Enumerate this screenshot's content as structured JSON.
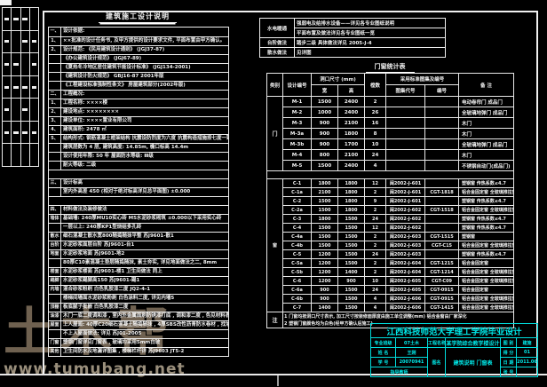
{
  "watermark": {
    "logo_text": "土木帮",
    "url": "www.tumubang.net"
  },
  "notes": {
    "title": "建筑施工设计说明",
    "rows": [
      {
        "n": "一、",
        "t": "设计依据:"
      },
      {
        "n": "1、",
        "t": "××批准的设计任务书, 及甲方提供的设计要求文件, 平面布置由甲方确认。"
      },
      {
        "n": "2、",
        "t": "设计规范: 《民用建筑设计通则》    (JGJ37-87)"
      },
      {
        "n": "",
        "t": "《办公建筑设计规范》    (JGJ67-89)"
      },
      {
        "n": "",
        "t": "《夏热冬冷地区居住建筑节能设计标准》    (JGJ134-2001)"
      },
      {
        "n": "",
        "t": "《建筑设计防火规范》    GBJ16-87    2001年版"
      },
      {
        "n": "",
        "t": "《工程建设标准强制性条文》    房屋建筑部分(2002年版)"
      },
      {
        "n": "二、",
        "t": "工程概况:"
      },
      {
        "n": "1、",
        "t": "工程名称: ××××楼"
      },
      {
        "n": "2、",
        "t": "建设地点: ××××××××"
      },
      {
        "n": "3、",
        "t": "建设单位: ××××置业有限公司"
      },
      {
        "n": "4、",
        "t": "建筑面积:    2478 ㎡"
      },
      {
        "n": "5、",
        "t": "结构形式: 钢筋混凝土框架结构   抗震设防烈度为六度   抗震构造措施按七度一致"
      },
      {
        "n": "",
        "t": "建筑层数为 4 层,   建筑高度: 14.85m,   檐口标高 14.4m"
      },
      {
        "n": "",
        "t": "设计使用年限: 50 年      屋面防水等级: Ⅲ级"
      },
      {
        "n": "",
        "t": "耐火等级: 二级"
      },
      {
        "blank": true
      },
      {
        "n": "三、",
        "t": "设计标高"
      },
      {
        "n": "",
        "t": "室内外高差 450    (相对于绝对标高详见总平面图)    ±0.000"
      },
      {
        "blank": true
      },
      {
        "n": "四、",
        "t": "材料做法及装修做法"
      },
      {
        "n": "墙体",
        "t": "基础墙: 240厚MU10实心砖  M5水泥砂浆砌筑  ±0.000以下采用实心砖"
      },
      {
        "n": "",
        "t": "一层以上: 240厚KP1型烧结多孔砖"
      },
      {
        "n": "散水",
        "t": "细石混凝土散水宽800随捣随抹平整    苏J9601-散1"
      },
      {
        "n": "台阶",
        "t": "水泥砂浆面层台阶    苏J9601-台1"
      },
      {
        "n": "地面",
        "t": "水泥砂浆地面    苏J9601-地2"
      },
      {
        "n": "",
        "t": "80厚C10素混凝土垫层随捣随抹, 素土夯实, 详见地面做法之二, 8mm"
      },
      {
        "n": "楼面",
        "t": "水泥砂浆楼面  苏J9601-楼1    卫生间做法 同上"
      },
      {
        "n": "踢脚",
        "t": "水泥砂浆踢脚高150    苏J9601-踢1"
      },
      {
        "n": "内墙",
        "t": "混合砂浆粉刷  白色乳胶漆二度    JQ2-4-1"
      },
      {
        "n": "",
        "t": "楼梯间墙面水泥砂浆粉刷  白色涂料二度, 详见内墙5"
      },
      {
        "n": "顶棚",
        "t": "板底腻子批嵌  白色乳胶漆二度"
      },
      {
        "n": "油漆",
        "t": "木门一底二度调和漆 , 室内外金属面刷防锈漆打底 , 调和漆二度 , 色见材料表"
      },
      {
        "n": "屋面",
        "t": "上人屋面: 40厚C20细石混凝土随捣随抹 , 4厚SBS改性沥青防水卷材 , 找坡2%, 详苏J01, 屋2"
      },
      {
        "n": "",
        "t": "不上人屋面做法:   详见 苏J01-2005"
      },
      {
        "n": "门窗",
        "t": "塑钢门窗详见门窗表 ,   玻璃均采用5mm白玻"
      },
      {
        "n": "其他",
        "t": "卫生间防水及地漏详图集 ,   楼梯栏杆详 苏J9603  JT5-2"
      }
    ]
  },
  "info_table": {
    "rows": [
      {
        "label": "水电暖通",
        "lines": [
          "强弱电及给排水设备——详见各专业图纸说明",
          "平面布置及做法详见各专业图纸一览"
        ]
      },
      {
        "label": "台阶做法",
        "lines": [
          "踏步二级   具体做法详见    2005-J-4"
        ]
      },
      {
        "label": "散水做法",
        "lines": [
          "见详图"
        ]
      }
    ]
  },
  "schedule": {
    "title": "门窗统计表",
    "headers": {
      "category": "类别",
      "code": "设计编号",
      "size": "洞口尺寸 (mm)",
      "w": "宽",
      "h": "高",
      "qty": "樘数",
      "std": "采用标准图集及编号",
      "atlas": "图集代号",
      "no": "编号",
      "remark": "备  注"
    },
    "door_group_label": "门",
    "window_group_label": "窗",
    "doors": [
      [
        "M-1",
        "1500",
        "2400",
        "2",
        "",
        "",
        "电动卷帘门    成品门"
      ],
      [
        "M-2",
        "1000",
        "2400",
        "26",
        "",
        "",
        "全玻璃地弹门    成品门"
      ],
      [
        "M-3",
        "900",
        "2100",
        "16",
        "",
        "",
        "木门"
      ],
      [
        "M-3a",
        "900",
        "1800",
        "8",
        "",
        "",
        "木门"
      ],
      [
        "M-3b",
        "900",
        "1700",
        "10",
        "",
        "",
        "全玻璃地弹门    成品门"
      ],
      [
        "M-4",
        "800",
        "2100",
        "24",
        "",
        "",
        "木门"
      ],
      [
        "M-5",
        "1500",
        "2400",
        "4",
        "",
        "",
        "不锈钢自动门(成品门)"
      ]
    ],
    "windows": [
      [
        "C-1",
        "1800",
        "1800",
        "12",
        "闽2002-J-601",
        "",
        "塑钢窗    传热系数≤4.7"
      ],
      [
        "C-1a",
        "2100",
        "1800",
        "2",
        "闽2002-J-601",
        "CGT-1818",
        "铝合金固定窗  全玻璃推拉窗"
      ],
      [
        "C-2",
        "1500",
        "1800",
        "9",
        "闽2002-J-601",
        "",
        "塑钢窗    传热系数≤4.7"
      ],
      [
        "C-2a",
        "1500",
        "1800",
        "2",
        "闽2002-J-602",
        "CGT-1518",
        "铝合金固定窗  全玻璃推拉窗"
      ],
      [
        "C-3",
        "1800",
        "1500",
        "24",
        "闽2002-J-602",
        "",
        "塑钢窗    传热系数≤4.7"
      ],
      [
        "C-4",
        "1500",
        "1500",
        "12",
        "闽2002-J-602",
        "",
        "塑钢窗    传热系数≤4.7"
      ],
      [
        "C-4a",
        "1500",
        "1500",
        "2",
        "闽2002-J-603",
        "CGT-1515",
        "塑钢窗"
      ],
      [
        "C-4b",
        "1500",
        "1500",
        "2",
        "闽2002-J-603",
        "CGT-C15",
        "铝合金固定窗  全玻璃推拉窗"
      ],
      [
        "C-5",
        "1200",
        "1500",
        "24",
        "闽2002-J-603",
        "",
        "塑钢窗    传热系数≤4.7"
      ],
      [
        "C-5a",
        "1200",
        "1500",
        "2",
        "闽2002-J-604",
        "CGT-1215",
        "铝合金固定窗"
      ],
      [
        "C-5b",
        "1200",
        "1400",
        "2",
        "闽2002-J-604",
        "CGT-1214",
        "铝合金固定窗  全玻璃推拉窗"
      ],
      [
        "C-6",
        "1200",
        "900",
        "10",
        "闽2002-J-605",
        "CGT-C09",
        "铝合金固定窗  全玻璃推拉窗"
      ],
      [
        "C-6a",
        "900",
        "1500",
        "24",
        "闽2002-J-605",
        "CGT-0915",
        "铝合金固定窗"
      ],
      [
        "C-6b",
        "900",
        "1500",
        "4",
        "闽2002-J-606",
        "CGT-0915",
        "铝合金固定窗  全玻璃推拉窗"
      ],
      [
        "C-7",
        "1400",
        "1500",
        "4",
        "闽2002-J-606",
        "CGT-1415",
        "铝合金固定窗  全玻璃推拉窗"
      ]
    ],
    "notes_label": "注",
    "notes": [
      "1 门窗均按洞口尺寸表示, 加工尺寸按装修面厚度由施工单位调整(mm)  铝合金窗由厂家深化",
      "2 塑钢门窗颜色均为白色(经甲方确认后施工)"
    ]
  },
  "titleblock": {
    "school": "江西科技师范大学理工学院毕业设计",
    "left": [
      [
        "专业班级",
        "07土木"
      ],
      [
        "姓  名",
        "王刚"
      ],
      [
        "学  号",
        "20070941"
      ],
      [
        "指导教师",
        ""
      ]
    ],
    "project_label": "工程名称",
    "project_value": "某学院综合教学楼设计",
    "sheet_label": "图名",
    "sheet_value": "建筑说明  门窗表",
    "right": [
      [
        "图 别",
        "建施"
      ],
      [
        "得 分",
        "01"
      ],
      [
        "日 期",
        "2011.06"
      ],
      [
        "张 号",
        ""
      ]
    ]
  },
  "colors": {
    "line": "#f0f0f0",
    "cyan": "#00e8e8",
    "watermark": "#6f6150"
  }
}
